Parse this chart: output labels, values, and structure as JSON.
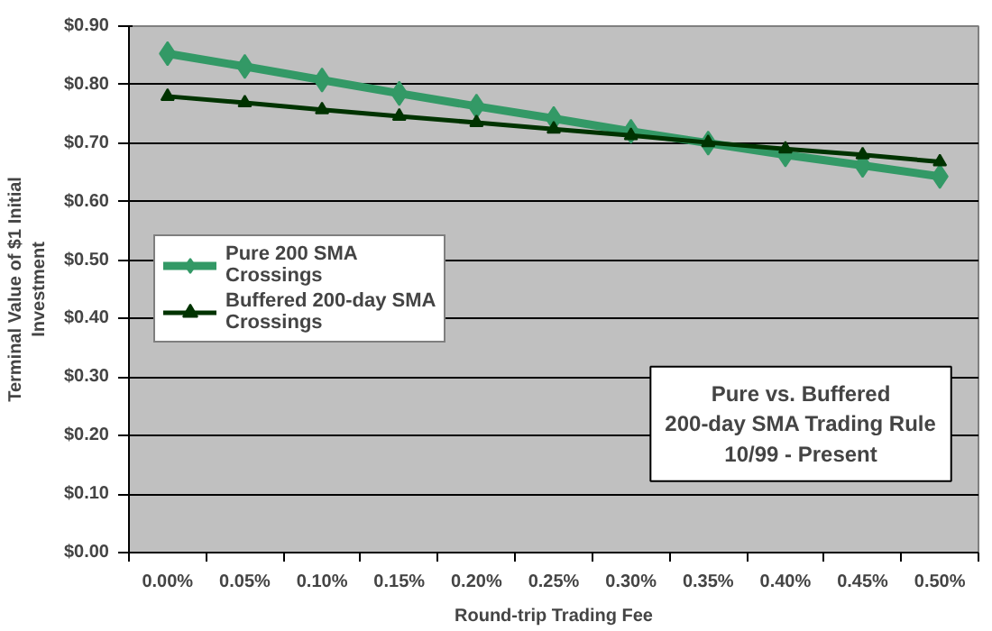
{
  "chart_data": {
    "type": "line",
    "xlabel": "Round-trip Trading Fee",
    "ylabel": "Terminal Value of $1 Initial Investment",
    "categories": [
      "0.00%",
      "0.05%",
      "0.10%",
      "0.15%",
      "0.20%",
      "0.25%",
      "0.30%",
      "0.35%",
      "0.40%",
      "0.45%",
      "0.50%"
    ],
    "series": [
      {
        "name": "Pure 200 SMA Crossings",
        "color": "#339966",
        "marker": "diamond",
        "values": [
          0.853,
          0.831,
          0.808,
          0.785,
          0.763,
          0.742,
          0.72,
          0.7,
          0.68,
          0.662,
          0.643
        ]
      },
      {
        "name": "Buffered 200-day SMA Crossings",
        "color": "#003300",
        "marker": "triangle",
        "values": [
          0.78,
          0.769,
          0.757,
          0.746,
          0.735,
          0.724,
          0.713,
          0.701,
          0.69,
          0.68,
          0.668
        ]
      }
    ],
    "ylim": [
      0,
      0.9
    ],
    "yticks": [
      {
        "value": 0,
        "label": "$0.00"
      },
      {
        "value": 0.1,
        "label": "$0.10"
      },
      {
        "value": 0.2,
        "label": "$0.20"
      },
      {
        "value": 0.3,
        "label": "$0.30"
      },
      {
        "value": 0.4,
        "label": "$0.40"
      },
      {
        "value": 0.5,
        "label": "$0.50"
      },
      {
        "value": 0.6,
        "label": "$0.60"
      },
      {
        "value": 0.7,
        "label": "$0.70"
      },
      {
        "value": 0.8,
        "label": "$0.80"
      },
      {
        "value": 0.9,
        "label": "$0.90"
      }
    ],
    "grid": "y",
    "legend": "left",
    "line_style": "solid",
    "annotations": [
      "Pure vs. Buffered\n200-day SMA Trading Rule\n10/99 - Present"
    ]
  }
}
